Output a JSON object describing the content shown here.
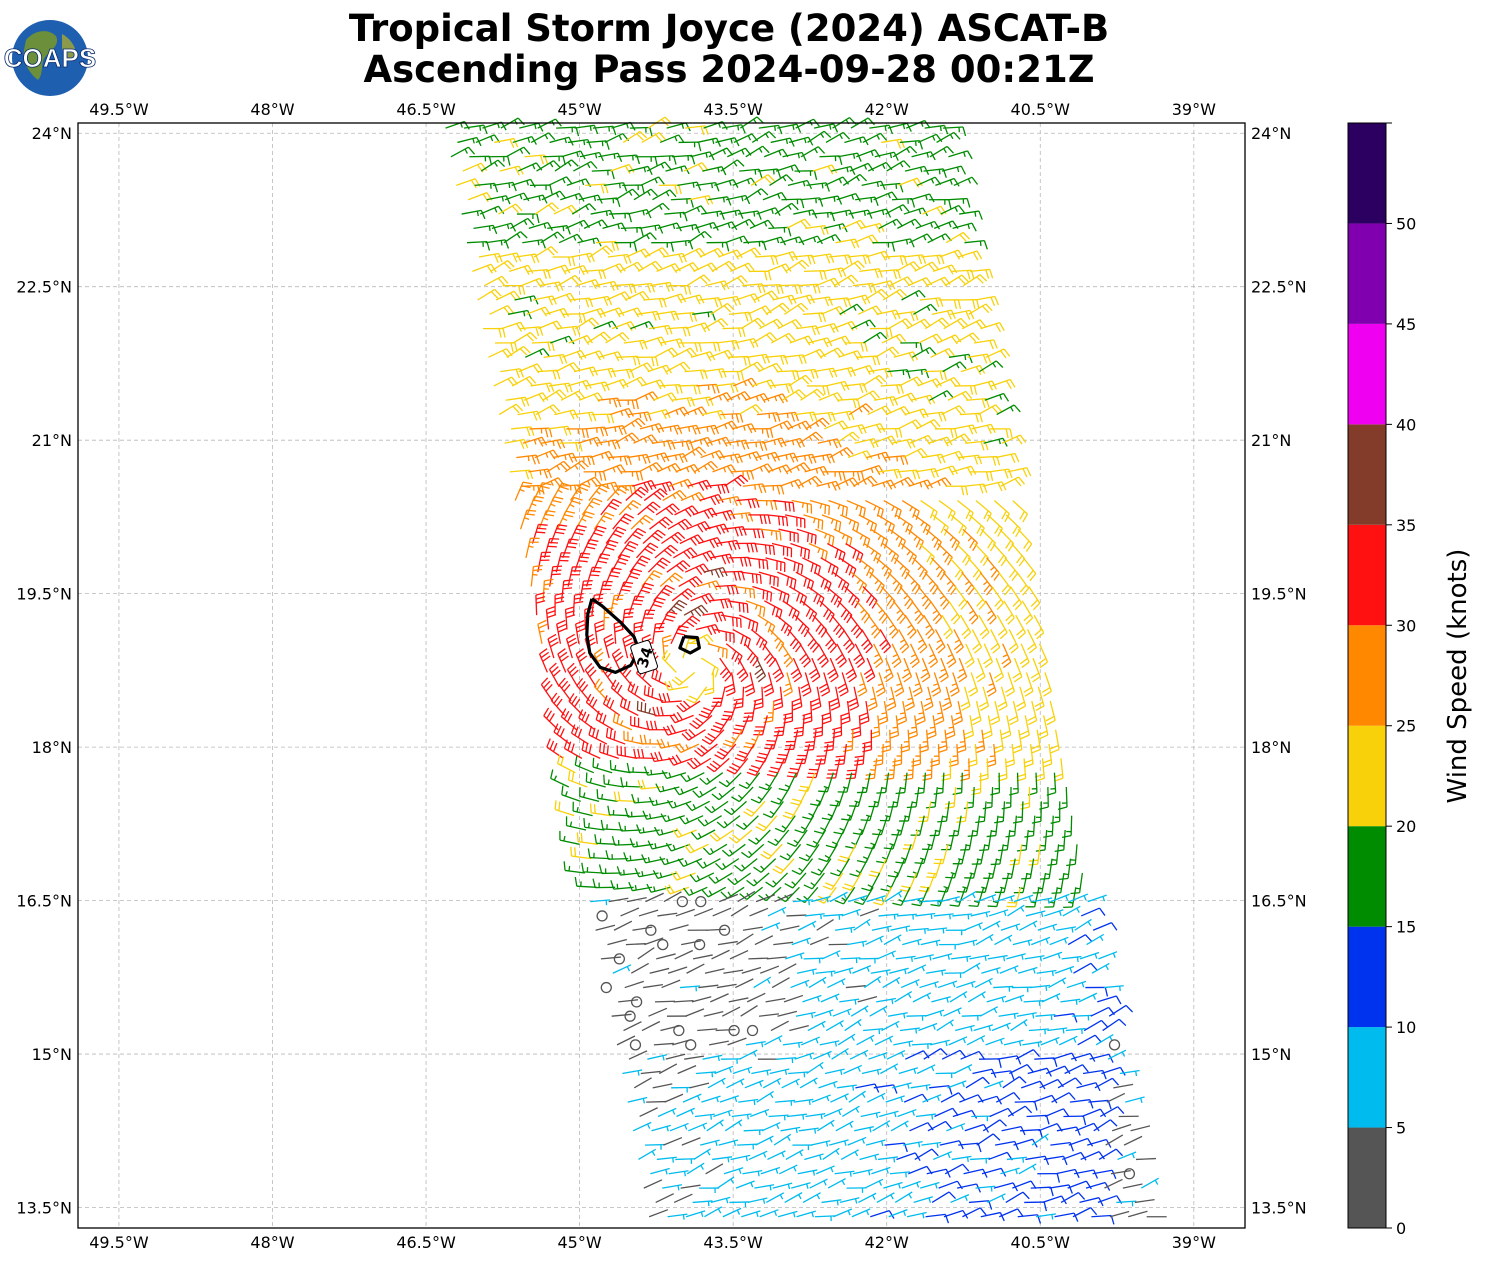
{
  "header": {
    "logo_text": "COAPS",
    "title_line1": "Tropical Storm Joyce (2024) ASCAT-B",
    "title_line2": "Ascending Pass 2024-09-28 00:21Z"
  },
  "chart_data": {
    "type": "wind-barb-map",
    "title": "Tropical Storm Joyce (2024) ASCAT-B Ascending Pass 2024-09-28 00:21Z",
    "xlim": [
      -49.9,
      -38.5
    ],
    "ylim": [
      13.3,
      24.1
    ],
    "grid": true,
    "x_ticks": [
      {
        "value": -49.5,
        "label": "49.5°W"
      },
      {
        "value": -48.0,
        "label": "48°W"
      },
      {
        "value": -46.5,
        "label": "46.5°W"
      },
      {
        "value": -45.0,
        "label": "45°W"
      },
      {
        "value": -43.5,
        "label": "43.5°W"
      },
      {
        "value": -42.0,
        "label": "42°W"
      },
      {
        "value": -40.5,
        "label": "40.5°W"
      },
      {
        "value": -39.0,
        "label": "39°W"
      }
    ],
    "y_ticks": [
      {
        "value": 24.0,
        "label": "24°N"
      },
      {
        "value": 22.5,
        "label": "22.5°N"
      },
      {
        "value": 21.0,
        "label": "21°N"
      },
      {
        "value": 19.5,
        "label": "19.5°N"
      },
      {
        "value": 18.0,
        "label": "18°N"
      },
      {
        "value": 16.5,
        "label": "16.5°N"
      },
      {
        "value": 15.0,
        "label": "15°N"
      },
      {
        "value": 13.5,
        "label": "13.5°N"
      }
    ],
    "storm_center": {
      "lon": -43.9,
      "lat": 18.8
    },
    "swath": {
      "north_west": [
        -46.3,
        24.0
      ],
      "north_east": [
        -41.4,
        24.0
      ],
      "south_west": [
        -44.3,
        13.3
      ],
      "south_east": [
        -39.4,
        13.3
      ]
    },
    "contour": {
      "label": "34",
      "level_kt": 34,
      "main": [
        [
          -44.88,
          19.45
        ],
        [
          -44.78,
          19.38
        ],
        [
          -44.6,
          19.22
        ],
        [
          -44.47,
          19.08
        ],
        [
          -44.42,
          18.95
        ],
        [
          -44.5,
          18.8
        ],
        [
          -44.65,
          18.73
        ],
        [
          -44.8,
          18.78
        ],
        [
          -44.9,
          18.92
        ],
        [
          -44.93,
          19.1
        ],
        [
          -44.92,
          19.3
        ],
        [
          -44.88,
          19.45
        ]
      ],
      "small": [
        [
          -43.98,
          19.08
        ],
        [
          -43.85,
          19.07
        ],
        [
          -43.83,
          18.97
        ],
        [
          -43.92,
          18.92
        ],
        [
          -44.02,
          18.97
        ],
        [
          -43.98,
          19.08
        ]
      ],
      "label_position": [
        -44.37,
        18.88
      ]
    },
    "colorbar": {
      "label": "Wind Speed (knots)",
      "range": [
        0,
        55
      ],
      "ticks": [
        0,
        5,
        10,
        15,
        20,
        25,
        30,
        35,
        40,
        45,
        50
      ],
      "bins": [
        {
          "min": 0,
          "max": 5,
          "color": "#555555"
        },
        {
          "min": 5,
          "max": 10,
          "color": "#00bbee"
        },
        {
          "min": 10,
          "max": 15,
          "color": "#0033ee"
        },
        {
          "min": 15,
          "max": 20,
          "color": "#008c00"
        },
        {
          "min": 20,
          "max": 25,
          "color": "#f8d10a"
        },
        {
          "min": 25,
          "max": 30,
          "color": "#ff8800"
        },
        {
          "min": 30,
          "max": 35,
          "color": "#ff1111"
        },
        {
          "min": 35,
          "max": 40,
          "color": "#833c2a"
        },
        {
          "min": 40,
          "max": 45,
          "color": "#f000f0"
        },
        {
          "min": 45,
          "max": 50,
          "color": "#8000b0"
        },
        {
          "min": 50,
          "max": 55,
          "color": "#2c0060"
        }
      ]
    }
  }
}
